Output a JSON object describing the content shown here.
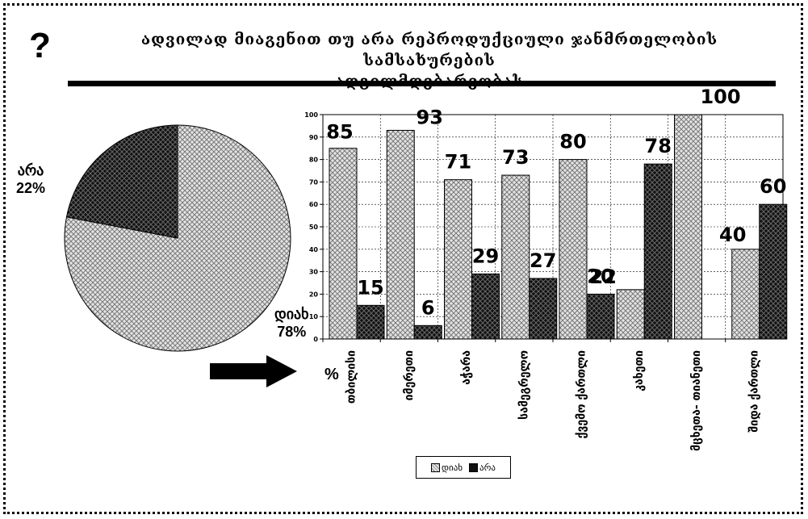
{
  "question_mark": "?",
  "title_line1": "ადვილად მიაგენით თუ არა რეპროდუქციული ჯანმრთელობის სამსახურების",
  "title_line2": "ადგილმდებარეობას",
  "pie": {
    "slices": [
      {
        "label": "დიახ",
        "value": 78,
        "pct_label": "78%",
        "pattern": "light"
      },
      {
        "label": "არა",
        "value": 22,
        "pct_label": "22%",
        "pattern": "dark"
      }
    ]
  },
  "percent_symbol": "%",
  "chart_data": {
    "type": "bar",
    "categories": [
      "თბილისი",
      "იმერეთი",
      "აჭარა",
      "სამეგრელო",
      "ქვემო ქართლი",
      "კახეთი",
      "მცხეთა- თიანეთი",
      "შიდა ქართლი"
    ],
    "series": [
      {
        "name": "დიახ",
        "values": [
          85,
          93,
          71,
          73,
          80,
          22,
          100,
          40
        ],
        "pattern": "light"
      },
      {
        "name": "არა",
        "values": [
          15,
          6,
          29,
          27,
          20,
          78,
          null,
          60
        ],
        "pattern": "dark"
      }
    ],
    "ylim": [
      0,
      100
    ],
    "yticks": [
      0,
      10,
      20,
      30,
      40,
      50,
      60,
      70,
      80,
      90,
      100
    ],
    "grid": true,
    "legend_position": "bottom",
    "data_labels": [
      {
        "text": "85"
      },
      {
        "text": "15"
      },
      {
        "text": "93"
      },
      {
        "text": "6"
      },
      {
        "text": "71"
      },
      {
        "text": "29"
      },
      {
        "text": "73"
      },
      {
        "text": "27"
      },
      {
        "text": "80"
      },
      {
        "text": "20"
      },
      {
        "text": "22"
      },
      {
        "text": "78"
      },
      {
        "text": "100"
      },
      {
        "text": "40"
      },
      {
        "text": "60"
      }
    ]
  },
  "legend": {
    "yes": "დიახ",
    "no": "არა"
  },
  "colors": {
    "light_pattern": "#b8b8b8",
    "dark_pattern": "#111111",
    "frame": "#000000"
  }
}
